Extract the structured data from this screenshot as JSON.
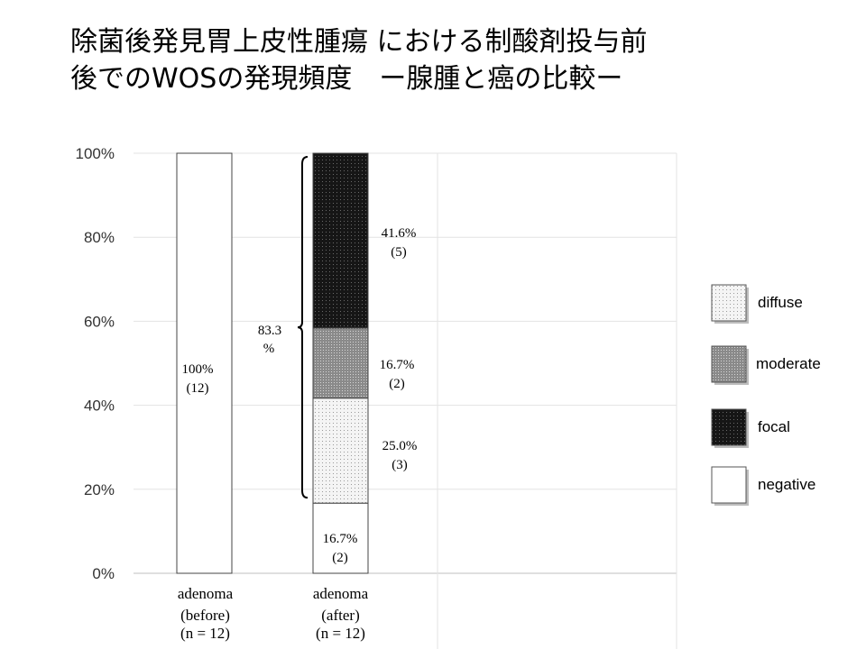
{
  "title": {
    "line1": "除菌後発見胃上皮性腫瘍 における制酸剤投与前",
    "line2": "後でのWOSの発現頻度　ー腺腫と癌の比較ー"
  },
  "chart_data": {
    "type": "bar",
    "stacked": true,
    "categories": [
      {
        "name": "adenoma",
        "sub": "(before)",
        "n": "(n = 12)"
      },
      {
        "name": "adenoma",
        "sub": "(after)",
        "n": "(n = 12)"
      }
    ],
    "series": [
      {
        "name": "negative",
        "key": "negative",
        "values": [
          100,
          16.7
        ],
        "labels": [
          [
            "100%",
            "(12)"
          ],
          [
            "16.7%",
            "(2)"
          ]
        ]
      },
      {
        "name": "diffuse",
        "key": "diffuse",
        "values": [
          0,
          25.0
        ],
        "labels": [
          null,
          [
            "25.0%",
            "(3)"
          ]
        ]
      },
      {
        "name": "moderate",
        "key": "moderate",
        "values": [
          0,
          16.7
        ],
        "labels": [
          null,
          [
            "16.7%",
            "(2)"
          ]
        ]
      },
      {
        "name": "focal",
        "key": "focal",
        "values": [
          0,
          41.6
        ],
        "labels": [
          null,
          [
            "41.6%",
            "(5)"
          ]
        ]
      }
    ],
    "yticks": [
      "0%",
      "20%",
      "40%",
      "60%",
      "80%",
      "100%"
    ],
    "ylim": [
      0,
      100
    ],
    "grid": true,
    "legend_position": "right",
    "legend_order": [
      "diffuse",
      "moderate",
      "focal",
      "negative"
    ],
    "bracket": {
      "from": 16.7,
      "to": 100,
      "label_line1": "83.3",
      "label_line2": "%"
    }
  }
}
